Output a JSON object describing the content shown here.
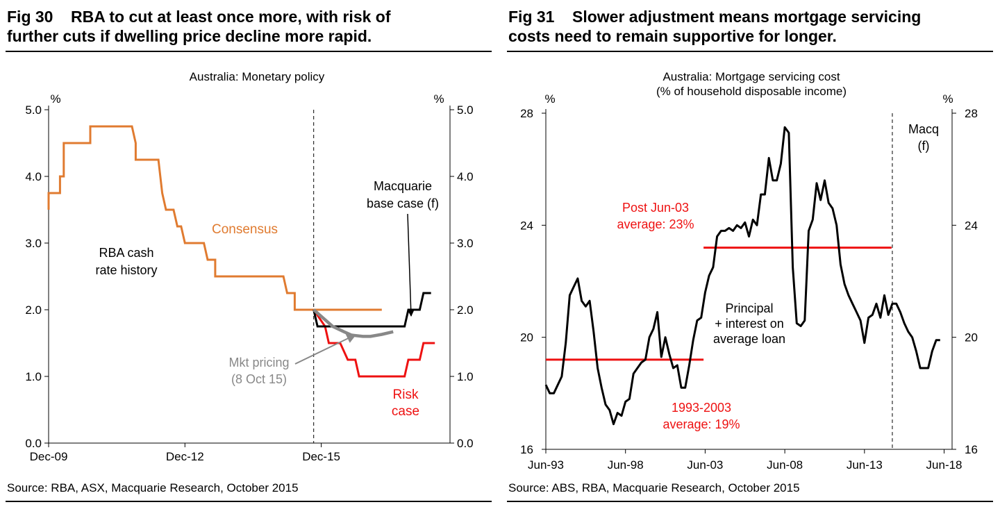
{
  "left": {
    "fig_number": "Fig 30",
    "title_line1": "RBA to cut at least once more, with risk of",
    "title_line2": "further cuts if dwelling price decline more rapid.",
    "source": "Source: RBA, ASX, Macquarie Research, October 2015",
    "colors": {
      "history": "#e07b30",
      "consensus": "#e07b30",
      "base": "#000000",
      "risk": "#ee1111",
      "market": "#888888"
    },
    "chart_data": {
      "type": "line",
      "title": "Australia: Monetary policy",
      "y_unit_left": "%",
      "y_unit_right": "%",
      "ylim": [
        0,
        5
      ],
      "y_ticks": [
        "0.0",
        "1.0",
        "2.0",
        "3.0",
        "4.0",
        "5.0"
      ],
      "x_range": [
        "2009-12",
        "2018-10"
      ],
      "x_ticks": [
        {
          "date": "2009-12",
          "label": "Dec-09"
        },
        {
          "date": "2012-12",
          "label": "Dec-12"
        },
        {
          "date": "2015-12",
          "label": "Dec-15"
        }
      ],
      "forecast_start": "2015-10",
      "annotations": {
        "history": [
          "RBA cash",
          "rate history"
        ],
        "consensus": "Consensus",
        "base": [
          "Macquarie",
          "base case (f)"
        ],
        "market": [
          "Mkt pricing",
          "(8 Oct 15)"
        ],
        "risk": [
          "Risk",
          "case"
        ]
      },
      "series": [
        {
          "name": "RBA cash rate history",
          "points": [
            [
              "2009-12",
              3.5
            ],
            [
              "2009-12",
              3.75
            ],
            [
              "2010-03",
              3.75
            ],
            [
              "2010-03",
              4.0
            ],
            [
              "2010-04",
              4.0
            ],
            [
              "2010-04",
              4.25
            ],
            [
              "2010-04",
              4.5
            ],
            [
              "2010-11",
              4.5
            ],
            [
              "2010-11",
              4.75
            ],
            [
              "2011-10",
              4.75
            ],
            [
              "2011-11",
              4.5
            ],
            [
              "2011-11",
              4.25
            ],
            [
              "2012-05",
              4.25
            ],
            [
              "2012-06",
              3.75
            ],
            [
              "2012-07",
              3.5
            ],
            [
              "2012-09",
              3.5
            ],
            [
              "2012-10",
              3.25
            ],
            [
              "2012-11",
              3.25
            ],
            [
              "2012-12",
              3.0
            ],
            [
              "2013-05",
              3.0
            ],
            [
              "2013-06",
              2.75
            ],
            [
              "2013-08",
              2.75
            ],
            [
              "2013-08",
              2.5
            ],
            [
              "2015-02",
              2.5
            ],
            [
              "2015-03",
              2.25
            ],
            [
              "2015-05",
              2.25
            ],
            [
              "2015-05",
              2.0
            ],
            [
              "2015-10",
              2.0
            ]
          ]
        },
        {
          "name": "Consensus",
          "points": [
            [
              "2015-10",
              2.0
            ],
            [
              "2017-04",
              2.0
            ]
          ]
        },
        {
          "name": "Macquarie base case (f)",
          "points": [
            [
              "2015-10",
              2.0
            ],
            [
              "2015-11",
              1.75
            ],
            [
              "2017-10",
              1.75
            ],
            [
              "2017-11",
              2.0
            ],
            [
              "2018-02",
              2.0
            ],
            [
              "2018-03",
              2.25
            ],
            [
              "2018-05",
              2.25
            ]
          ]
        },
        {
          "name": "Mkt pricing (8 Oct 15)",
          "points": [
            [
              "2015-10",
              2.0
            ],
            [
              "2015-12",
              1.9
            ],
            [
              "2016-03",
              1.75
            ],
            [
              "2016-06",
              1.67
            ],
            [
              "2016-08",
              1.62
            ],
            [
              "2016-11",
              1.6
            ],
            [
              "2017-01",
              1.6
            ],
            [
              "2017-04",
              1.63
            ],
            [
              "2017-07",
              1.67
            ]
          ]
        },
        {
          "name": "Risk case",
          "points": [
            [
              "2015-10",
              2.0
            ],
            [
              "2016-01",
              1.75
            ],
            [
              "2016-02",
              1.5
            ],
            [
              "2016-05",
              1.5
            ],
            [
              "2016-07",
              1.25
            ],
            [
              "2016-09",
              1.25
            ],
            [
              "2016-10",
              1.0
            ],
            [
              "2017-10",
              1.0
            ],
            [
              "2017-11",
              1.25
            ],
            [
              "2018-02",
              1.25
            ],
            [
              "2018-03",
              1.5
            ],
            [
              "2018-06",
              1.5
            ]
          ]
        }
      ]
    }
  },
  "right": {
    "fig_number": "Fig 31",
    "title_line1": "Slower adjustment means mortgage servicing",
    "title_line2": "costs need to remain supportive for longer.",
    "source": "Source: ABS, RBA, Macquarie Research, October 2015",
    "colors": {
      "series": "#000000",
      "average": "#ee1111"
    },
    "chart_data": {
      "type": "line",
      "title_line1": "Australia: Mortgage servicing cost",
      "title_line2": "(% of household disposable income)",
      "y_unit_left": "%",
      "y_unit_right": "%",
      "ylim": [
        16,
        28
      ],
      "y_ticks": [
        "16",
        "20",
        "24",
        "28"
      ],
      "x_range": [
        1993.5,
        2019.0
      ],
      "x_ticks": [
        {
          "year": 1993.5,
          "label": "Jun-93"
        },
        {
          "year": 1998.5,
          "label": "Jun-98"
        },
        {
          "year": 2003.5,
          "label": "Jun-03"
        },
        {
          "year": 2008.5,
          "label": "Jun-08"
        },
        {
          "year": 2013.5,
          "label": "Jun-13"
        },
        {
          "year": 2018.5,
          "label": "Jun-18"
        }
      ],
      "forecast_start": 2015.25,
      "forecast_label": [
        "Macq",
        "(f)"
      ],
      "annotations": {
        "series": [
          "Principal",
          "+ interest on",
          "average loan"
        ],
        "avg_post": [
          "Post Jun-03",
          "average: 23%"
        ],
        "avg_pre": [
          "1993-2003",
          "average: 19%"
        ]
      },
      "averages": [
        {
          "name": "1993-2003 average",
          "value": 19.2,
          "x": [
            1993.5,
            2003.4
          ]
        },
        {
          "name": "Post Jun-03 average",
          "value": 23.2,
          "x": [
            2003.4,
            2015.2
          ]
        }
      ],
      "series": [
        {
          "name": "Principal + interest on average loan",
          "points": [
            [
              1993.5,
              18.3
            ],
            [
              1993.75,
              18.0
            ],
            [
              1994.0,
              18.0
            ],
            [
              1994.25,
              18.3
            ],
            [
              1994.5,
              18.6
            ],
            [
              1994.75,
              19.8
            ],
            [
              1995.0,
              21.5
            ],
            [
              1995.25,
              21.8
            ],
            [
              1995.5,
              22.1
            ],
            [
              1995.75,
              21.3
            ],
            [
              1996.0,
              21.1
            ],
            [
              1996.25,
              21.3
            ],
            [
              1996.5,
              20.2
            ],
            [
              1996.75,
              18.9
            ],
            [
              1997.0,
              18.2
            ],
            [
              1997.25,
              17.6
            ],
            [
              1997.5,
              17.4
            ],
            [
              1997.75,
              16.9
            ],
            [
              1998.0,
              17.3
            ],
            [
              1998.25,
              17.2
            ],
            [
              1998.5,
              17.7
            ],
            [
              1998.75,
              17.8
            ],
            [
              1999.0,
              18.7
            ],
            [
              1999.25,
              18.9
            ],
            [
              1999.5,
              19.1
            ],
            [
              1999.75,
              19.2
            ],
            [
              2000.0,
              20.0
            ],
            [
              2000.25,
              20.3
            ],
            [
              2000.5,
              20.9
            ],
            [
              2000.75,
              19.3
            ],
            [
              2001.0,
              20.0
            ],
            [
              2001.25,
              19.4
            ],
            [
              2001.5,
              18.9
            ],
            [
              2001.75,
              19.0
            ],
            [
              2002.0,
              18.2
            ],
            [
              2002.25,
              18.2
            ],
            [
              2002.5,
              19.0
            ],
            [
              2002.75,
              19.9
            ],
            [
              2003.0,
              20.6
            ],
            [
              2003.25,
              20.7
            ],
            [
              2003.5,
              21.6
            ],
            [
              2003.75,
              22.2
            ],
            [
              2004.0,
              22.5
            ],
            [
              2004.25,
              23.6
            ],
            [
              2004.5,
              23.8
            ],
            [
              2004.75,
              23.8
            ],
            [
              2005.0,
              23.9
            ],
            [
              2005.25,
              23.8
            ],
            [
              2005.5,
              24.0
            ],
            [
              2005.75,
              23.9
            ],
            [
              2006.0,
              24.1
            ],
            [
              2006.25,
              23.6
            ],
            [
              2006.5,
              24.2
            ],
            [
              2006.75,
              24.0
            ],
            [
              2007.0,
              25.1
            ],
            [
              2007.25,
              25.1
            ],
            [
              2007.5,
              26.4
            ],
            [
              2007.75,
              25.6
            ],
            [
              2008.0,
              25.6
            ],
            [
              2008.25,
              26.2
            ],
            [
              2008.5,
              27.5
            ],
            [
              2008.75,
              27.3
            ],
            [
              2009.0,
              22.5
            ],
            [
              2009.25,
              20.5
            ],
            [
              2009.5,
              20.4
            ],
            [
              2009.75,
              20.6
            ],
            [
              2010.0,
              23.8
            ],
            [
              2010.25,
              24.2
            ],
            [
              2010.5,
              25.5
            ],
            [
              2010.75,
              24.9
            ],
            [
              2011.0,
              25.6
            ],
            [
              2011.25,
              24.8
            ],
            [
              2011.5,
              24.6
            ],
            [
              2011.75,
              24.0
            ],
            [
              2012.0,
              22.6
            ],
            [
              2012.25,
              21.9
            ],
            [
              2012.5,
              21.5
            ],
            [
              2012.75,
              21.2
            ],
            [
              2013.0,
              20.9
            ],
            [
              2013.25,
              20.6
            ],
            [
              2013.5,
              19.8
            ],
            [
              2013.75,
              20.7
            ],
            [
              2014.0,
              20.8
            ],
            [
              2014.25,
              21.2
            ],
            [
              2014.5,
              20.7
            ],
            [
              2014.75,
              21.5
            ],
            [
              2015.0,
              20.8
            ],
            [
              2015.25,
              21.2
            ],
            [
              2015.5,
              21.2
            ],
            [
              2015.75,
              20.9
            ],
            [
              2016.0,
              20.5
            ],
            [
              2016.25,
              20.2
            ],
            [
              2016.5,
              20.0
            ],
            [
              2016.75,
              19.5
            ],
            [
              2017.0,
              18.9
            ],
            [
              2017.25,
              18.9
            ],
            [
              2017.5,
              18.9
            ],
            [
              2017.75,
              19.5
            ],
            [
              2018.0,
              19.9
            ],
            [
              2018.25,
              19.9
            ]
          ]
        }
      ]
    }
  }
}
